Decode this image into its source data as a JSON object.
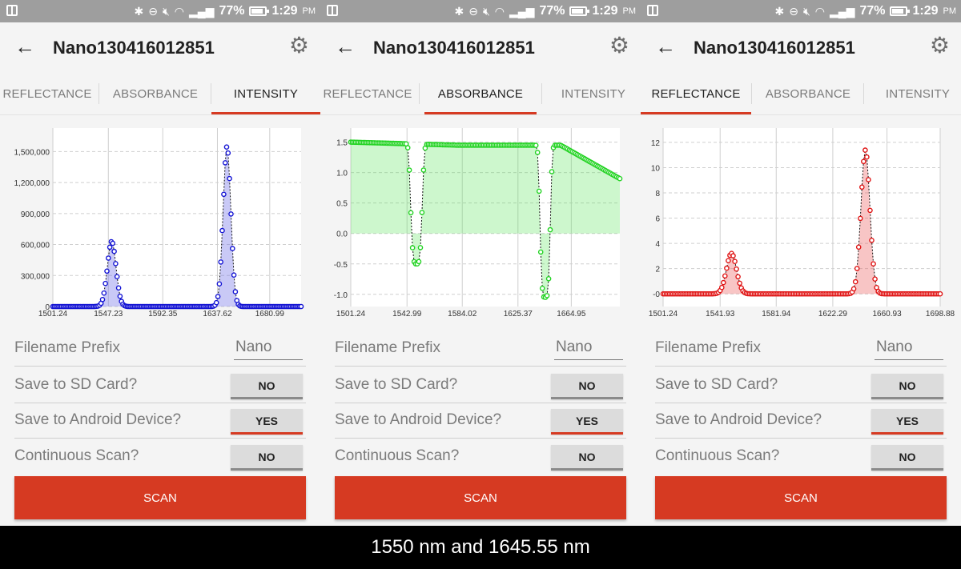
{
  "status_bar": {
    "battery": "77%",
    "time": "1:29",
    "ampm": "PM"
  },
  "app": {
    "title": "Nano130416012851"
  },
  "tabs": [
    "REFLECTANCE",
    "ABSORBANCE",
    "INTENSITY"
  ],
  "settings": {
    "prefix_label": "Filename Prefix",
    "prefix_value": "Nano",
    "sd_label": "Save to SD Card?",
    "sd_value": "NO",
    "android_label": "Save to Android Device?",
    "android_value": "YES",
    "continuous_label": "Continuous Scan?",
    "continuous_value": "NO",
    "scan_label": "SCAN"
  },
  "panels": [
    {
      "active_tab": "INTENSITY"
    },
    {
      "active_tab": "ABSORBANCE"
    },
    {
      "active_tab": "REFLECTANCE"
    }
  ],
  "caption": "1550 nm and 1645.55 nm",
  "colors": {
    "accent": "#d63a22",
    "intensity": "#1515d4",
    "absorbance": "#22d322",
    "reflectance": "#e01515"
  },
  "chart_data": [
    {
      "type": "area",
      "series_color": "#1515d4",
      "xlim": [
        1501.24,
        1707.0
      ],
      "ylim": [
        0,
        1650000
      ],
      "x_ticks": [
        1501.24,
        1547.23,
        1592.35,
        1637.62,
        1680.99
      ],
      "x_tick_labels": [
        "1501.24",
        "1547.23",
        "1592.35",
        "1637.62",
        "1680.99"
      ],
      "y_ticks": [
        0,
        300000,
        600000,
        900000,
        1200000,
        1500000
      ],
      "y_tick_labels": [
        "0",
        "300,000",
        "600,000",
        "900,000",
        "1,200,000",
        "1,500,000"
      ],
      "baseline": 0,
      "peaks": [
        {
          "center": 1550.0,
          "height": 630000,
          "width": 3.6
        },
        {
          "center": 1645.55,
          "height": 1550000,
          "width": 3.2
        }
      ]
    },
    {
      "type": "area",
      "series_color": "#22d322",
      "xlim": [
        1501.24,
        1701.0
      ],
      "ylim": [
        -1.2,
        1.6
      ],
      "x_ticks": [
        1501.24,
        1542.99,
        1584.02,
        1625.37,
        1664.95
      ],
      "x_tick_labels": [
        "1501.24",
        "1542.99",
        "1584.02",
        "1625.37",
        "1664.95"
      ],
      "y_ticks": [
        -1.0,
        -0.5,
        0.0,
        0.5,
        1.0,
        1.5
      ],
      "y_tick_labels": [
        "-1.0",
        "-0.5",
        "0.0",
        "0.5",
        "1.0",
        "1.5"
      ],
      "baseline": 0,
      "level_start": 1.5,
      "level_mid": 1.45,
      "level_end": 0.9,
      "dips": [
        {
          "center": 1550.0,
          "depth": -0.5,
          "width": 4.0
        },
        {
          "center": 1645.55,
          "depth": -1.05,
          "width": 3.6
        }
      ]
    },
    {
      "type": "area",
      "series_color": "#e01515",
      "xlim": [
        1501.24,
        1698.88
      ],
      "ylim": [
        -1.0,
        12.5
      ],
      "x_ticks": [
        1501.24,
        1541.93,
        1581.94,
        1622.29,
        1660.93,
        1698.88
      ],
      "x_tick_labels": [
        "1501.24",
        "1541.93",
        "1581.94",
        "1622.29",
        "1660.93",
        "1698.88"
      ],
      "y_ticks": [
        0,
        2,
        4,
        6,
        8,
        10,
        12
      ],
      "y_tick_labels": [
        "-0",
        "2",
        "4",
        "6",
        "8",
        "10",
        "12"
      ],
      "baseline": 0,
      "peaks": [
        {
          "center": 1550.0,
          "height": 3.2,
          "width": 3.6
        },
        {
          "center": 1645.55,
          "height": 11.4,
          "width": 3.2
        }
      ]
    }
  ]
}
